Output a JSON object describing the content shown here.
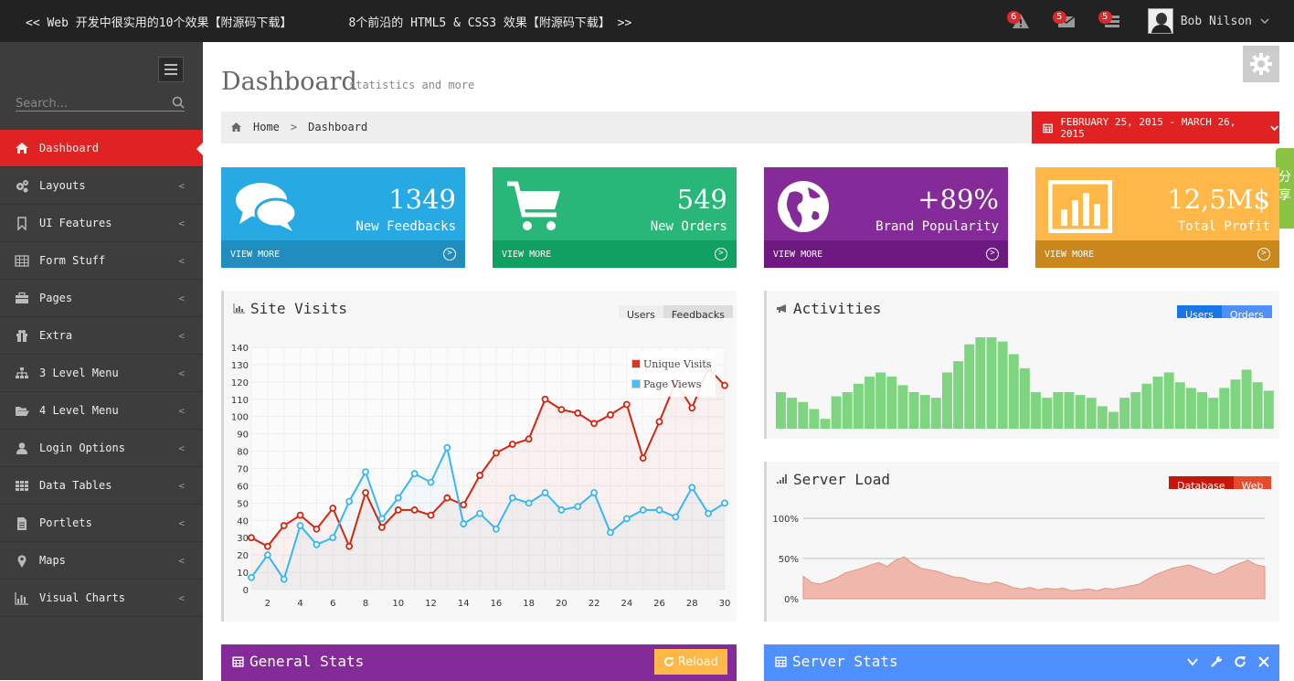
{
  "topbar": {
    "links": [
      "<< Web 开发中很实用的10个效果【附源码下载】",
      "8个前沿的 HTML5 & CSS3 效果【附源码下载】 >>"
    ],
    "notifications": [
      {
        "icon": "warning-icon",
        "count": "6"
      },
      {
        "icon": "envelope-icon",
        "count": "5"
      },
      {
        "icon": "tasks-icon",
        "count": "5"
      }
    ],
    "user_name": "Bob Nilson"
  },
  "sidebar": {
    "search_placeholder": "Search...",
    "items": [
      {
        "label": "Dashboard",
        "icon": "home-icon",
        "active": true
      },
      {
        "label": "Layouts",
        "icon": "cogs-icon"
      },
      {
        "label": "UI Features",
        "icon": "bookmark-icon"
      },
      {
        "label": "Form Stuff",
        "icon": "table-icon"
      },
      {
        "label": "Pages",
        "icon": "briefcase-icon"
      },
      {
        "label": "Extra",
        "icon": "gift-icon"
      },
      {
        "label": "3 Level Menu",
        "icon": "sitemap-icon"
      },
      {
        "label": "4 Level Menu",
        "icon": "folder-open-icon"
      },
      {
        "label": "Login Options",
        "icon": "user-icon"
      },
      {
        "label": "Data Tables",
        "icon": "th-icon"
      },
      {
        "label": "Portlets",
        "icon": "file-text-icon"
      },
      {
        "label": "Maps",
        "icon": "map-marker-icon"
      },
      {
        "label": "Visual Charts",
        "icon": "bar-chart-icon"
      }
    ]
  },
  "header": {
    "title": "Dashboard",
    "subtitle": "statistics and more",
    "breadcrumb": [
      "Home",
      "Dashboard"
    ],
    "date_range": "FEBRUARY 25, 2015 - MARCH 26, 2015",
    "share": "分享"
  },
  "stats": [
    {
      "value": "1349",
      "label": "New Feedbacks",
      "more": "VIEW MORE",
      "color": "#27a9e3",
      "more_color": "#208dbe",
      "icon": "comments-icon"
    },
    {
      "value": "549",
      "label": "New Orders",
      "more": "VIEW MORE",
      "color": "#28b779",
      "more_color": "#10a062",
      "icon": "shopping-cart-icon"
    },
    {
      "value": "+89%",
      "label": "Brand Popularity",
      "more": "VIEW MORE",
      "color": "#852b99",
      "more_color": "#6e1881",
      "icon": "globe-icon"
    },
    {
      "value": "12,5M$",
      "label": "Total Profit",
      "more": "VIEW MORE",
      "color": "#ffb848",
      "more_color": "#cb871b",
      "icon": "bar-chart-icon"
    }
  ],
  "site_visits": {
    "title": "Site Visits",
    "tabs": [
      "Users",
      "Feedbacks"
    ]
  },
  "activities": {
    "title": "Activities",
    "tabs": [
      "Users",
      "Orders"
    ]
  },
  "server_load": {
    "title": "Server Load",
    "tabs": [
      "Database",
      "Web"
    ]
  },
  "general_stats": {
    "title": "General Stats",
    "reload": "Reload"
  },
  "server_stats": {
    "title": "Server Stats"
  },
  "colors": {
    "accent": "#e02222",
    "unique_visits": "#d12610",
    "page_views": "#37b7f3",
    "activity_bars": "#7dd67f",
    "server_fill": "#f0b8ac"
  },
  "chart_data": [
    {
      "type": "line",
      "title": "Site Visits",
      "x": [
        1,
        2,
        3,
        4,
        5,
        6,
        7,
        8,
        9,
        10,
        11,
        12,
        13,
        14,
        15,
        16,
        17,
        18,
        19,
        20,
        21,
        22,
        23,
        24,
        25,
        26,
        27,
        28,
        29,
        30
      ],
      "xticks": [
        2,
        4,
        6,
        8,
        10,
        12,
        14,
        16,
        18,
        20,
        22,
        24,
        26,
        28,
        30
      ],
      "ylim": [
        0,
        140
      ],
      "yticks": [
        0,
        10,
        20,
        30,
        40,
        50,
        60,
        70,
        80,
        90,
        100,
        110,
        120,
        130,
        140
      ],
      "legend_position": "top-right",
      "series": [
        {
          "name": "Unique Visits",
          "color": "#d12610",
          "values": [
            30,
            25,
            37,
            43,
            35,
            47,
            25,
            56,
            36,
            46,
            46,
            43,
            53,
            49,
            66,
            79,
            84,
            87,
            110,
            104,
            102,
            96,
            101,
            107,
            76,
            97,
            120,
            105,
            128,
            118
          ]
        },
        {
          "name": "Page Views",
          "color": "#37b7f3",
          "values": [
            7,
            20,
            6,
            37,
            26,
            30,
            51,
            68,
            41,
            53,
            67,
            62,
            82,
            38,
            44,
            35,
            53,
            50,
            56,
            46,
            48,
            56,
            33,
            41,
            46,
            46,
            42,
            59,
            44,
            50
          ]
        }
      ]
    },
    {
      "type": "bar",
      "title": "Activities",
      "values": [
        26,
        22,
        19,
        14,
        7,
        23,
        26,
        32,
        37,
        40,
        37,
        31,
        26,
        24,
        22,
        40,
        48,
        60,
        65,
        65,
        62,
        53,
        43,
        26,
        22,
        26,
        26,
        24,
        22,
        16,
        12,
        22,
        26,
        32,
        37,
        40,
        33,
        29,
        26,
        22,
        29,
        35,
        42,
        33,
        27
      ]
    },
    {
      "type": "area",
      "title": "Server Load",
      "yticks": [
        "100%",
        "50%",
        "0%"
      ],
      "ylim": [
        0,
        100
      ],
      "values": [
        28,
        20,
        18,
        22,
        26,
        32,
        35,
        38,
        42,
        45,
        40,
        48,
        52,
        44,
        38,
        36,
        34,
        30,
        27,
        26,
        22,
        20,
        18,
        21,
        18,
        14,
        12,
        14,
        11,
        13,
        12,
        13,
        10,
        11,
        12,
        10,
        13,
        12,
        14,
        16,
        18,
        24,
        30,
        34,
        38,
        40,
        42,
        38,
        34,
        30,
        34,
        40,
        44,
        48,
        42,
        40
      ]
    }
  ]
}
